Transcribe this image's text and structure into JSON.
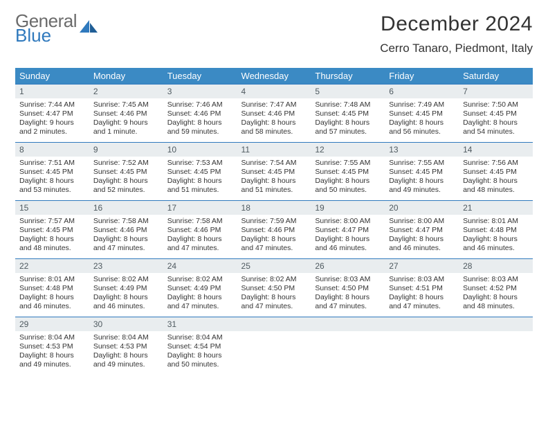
{
  "logo": {
    "word1": "General",
    "word2": "Blue"
  },
  "title": "December 2024",
  "subtitle": "Cerro Tanaro, Piedmont, Italy",
  "colors": {
    "header_bg": "#3b8ac4",
    "header_text": "#ffffff",
    "daynum_bg": "#e9edef",
    "daynum_border_top": "#2f79bd",
    "body_text": "#333333",
    "logo_gray": "#6b6b6b",
    "logo_blue": "#2f79bd",
    "page_bg": "#ffffff"
  },
  "days_of_week": [
    "Sunday",
    "Monday",
    "Tuesday",
    "Wednesday",
    "Thursday",
    "Friday",
    "Saturday"
  ],
  "weeks": [
    [
      {
        "n": "1",
        "sunrise": "Sunrise: 7:44 AM",
        "sunset": "Sunset: 4:47 PM",
        "day1": "Daylight: 9 hours",
        "day2": "and 2 minutes."
      },
      {
        "n": "2",
        "sunrise": "Sunrise: 7:45 AM",
        "sunset": "Sunset: 4:46 PM",
        "day1": "Daylight: 9 hours",
        "day2": "and 1 minute."
      },
      {
        "n": "3",
        "sunrise": "Sunrise: 7:46 AM",
        "sunset": "Sunset: 4:46 PM",
        "day1": "Daylight: 8 hours",
        "day2": "and 59 minutes."
      },
      {
        "n": "4",
        "sunrise": "Sunrise: 7:47 AM",
        "sunset": "Sunset: 4:46 PM",
        "day1": "Daylight: 8 hours",
        "day2": "and 58 minutes."
      },
      {
        "n": "5",
        "sunrise": "Sunrise: 7:48 AM",
        "sunset": "Sunset: 4:45 PM",
        "day1": "Daylight: 8 hours",
        "day2": "and 57 minutes."
      },
      {
        "n": "6",
        "sunrise": "Sunrise: 7:49 AM",
        "sunset": "Sunset: 4:45 PM",
        "day1": "Daylight: 8 hours",
        "day2": "and 56 minutes."
      },
      {
        "n": "7",
        "sunrise": "Sunrise: 7:50 AM",
        "sunset": "Sunset: 4:45 PM",
        "day1": "Daylight: 8 hours",
        "day2": "and 54 minutes."
      }
    ],
    [
      {
        "n": "8",
        "sunrise": "Sunrise: 7:51 AM",
        "sunset": "Sunset: 4:45 PM",
        "day1": "Daylight: 8 hours",
        "day2": "and 53 minutes."
      },
      {
        "n": "9",
        "sunrise": "Sunrise: 7:52 AM",
        "sunset": "Sunset: 4:45 PM",
        "day1": "Daylight: 8 hours",
        "day2": "and 52 minutes."
      },
      {
        "n": "10",
        "sunrise": "Sunrise: 7:53 AM",
        "sunset": "Sunset: 4:45 PM",
        "day1": "Daylight: 8 hours",
        "day2": "and 51 minutes."
      },
      {
        "n": "11",
        "sunrise": "Sunrise: 7:54 AM",
        "sunset": "Sunset: 4:45 PM",
        "day1": "Daylight: 8 hours",
        "day2": "and 51 minutes."
      },
      {
        "n": "12",
        "sunrise": "Sunrise: 7:55 AM",
        "sunset": "Sunset: 4:45 PM",
        "day1": "Daylight: 8 hours",
        "day2": "and 50 minutes."
      },
      {
        "n": "13",
        "sunrise": "Sunrise: 7:55 AM",
        "sunset": "Sunset: 4:45 PM",
        "day1": "Daylight: 8 hours",
        "day2": "and 49 minutes."
      },
      {
        "n": "14",
        "sunrise": "Sunrise: 7:56 AM",
        "sunset": "Sunset: 4:45 PM",
        "day1": "Daylight: 8 hours",
        "day2": "and 48 minutes."
      }
    ],
    [
      {
        "n": "15",
        "sunrise": "Sunrise: 7:57 AM",
        "sunset": "Sunset: 4:45 PM",
        "day1": "Daylight: 8 hours",
        "day2": "and 48 minutes."
      },
      {
        "n": "16",
        "sunrise": "Sunrise: 7:58 AM",
        "sunset": "Sunset: 4:46 PM",
        "day1": "Daylight: 8 hours",
        "day2": "and 47 minutes."
      },
      {
        "n": "17",
        "sunrise": "Sunrise: 7:58 AM",
        "sunset": "Sunset: 4:46 PM",
        "day1": "Daylight: 8 hours",
        "day2": "and 47 minutes."
      },
      {
        "n": "18",
        "sunrise": "Sunrise: 7:59 AM",
        "sunset": "Sunset: 4:46 PM",
        "day1": "Daylight: 8 hours",
        "day2": "and 47 minutes."
      },
      {
        "n": "19",
        "sunrise": "Sunrise: 8:00 AM",
        "sunset": "Sunset: 4:47 PM",
        "day1": "Daylight: 8 hours",
        "day2": "and 46 minutes."
      },
      {
        "n": "20",
        "sunrise": "Sunrise: 8:00 AM",
        "sunset": "Sunset: 4:47 PM",
        "day1": "Daylight: 8 hours",
        "day2": "and 46 minutes."
      },
      {
        "n": "21",
        "sunrise": "Sunrise: 8:01 AM",
        "sunset": "Sunset: 4:48 PM",
        "day1": "Daylight: 8 hours",
        "day2": "and 46 minutes."
      }
    ],
    [
      {
        "n": "22",
        "sunrise": "Sunrise: 8:01 AM",
        "sunset": "Sunset: 4:48 PM",
        "day1": "Daylight: 8 hours",
        "day2": "and 46 minutes."
      },
      {
        "n": "23",
        "sunrise": "Sunrise: 8:02 AM",
        "sunset": "Sunset: 4:49 PM",
        "day1": "Daylight: 8 hours",
        "day2": "and 46 minutes."
      },
      {
        "n": "24",
        "sunrise": "Sunrise: 8:02 AM",
        "sunset": "Sunset: 4:49 PM",
        "day1": "Daylight: 8 hours",
        "day2": "and 47 minutes."
      },
      {
        "n": "25",
        "sunrise": "Sunrise: 8:02 AM",
        "sunset": "Sunset: 4:50 PM",
        "day1": "Daylight: 8 hours",
        "day2": "and 47 minutes."
      },
      {
        "n": "26",
        "sunrise": "Sunrise: 8:03 AM",
        "sunset": "Sunset: 4:50 PM",
        "day1": "Daylight: 8 hours",
        "day2": "and 47 minutes."
      },
      {
        "n": "27",
        "sunrise": "Sunrise: 8:03 AM",
        "sunset": "Sunset: 4:51 PM",
        "day1": "Daylight: 8 hours",
        "day2": "and 47 minutes."
      },
      {
        "n": "28",
        "sunrise": "Sunrise: 8:03 AM",
        "sunset": "Sunset: 4:52 PM",
        "day1": "Daylight: 8 hours",
        "day2": "and 48 minutes."
      }
    ],
    [
      {
        "n": "29",
        "sunrise": "Sunrise: 8:04 AM",
        "sunset": "Sunset: 4:53 PM",
        "day1": "Daylight: 8 hours",
        "day2": "and 49 minutes."
      },
      {
        "n": "30",
        "sunrise": "Sunrise: 8:04 AM",
        "sunset": "Sunset: 4:53 PM",
        "day1": "Daylight: 8 hours",
        "day2": "and 49 minutes."
      },
      {
        "n": "31",
        "sunrise": "Sunrise: 8:04 AM",
        "sunset": "Sunset: 4:54 PM",
        "day1": "Daylight: 8 hours",
        "day2": "and 50 minutes."
      },
      {
        "empty": true
      },
      {
        "empty": true
      },
      {
        "empty": true
      },
      {
        "empty": true
      }
    ]
  ]
}
